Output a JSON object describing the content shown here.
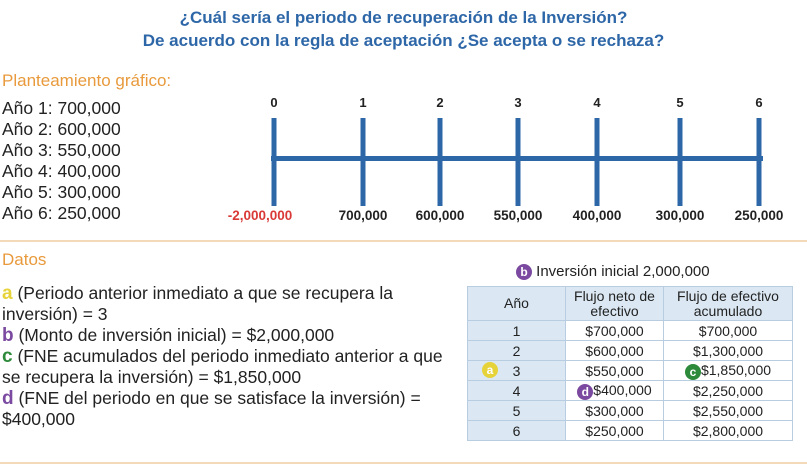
{
  "title": {
    "line1": "¿Cuál sería el periodo de recuperación de la Inversión?",
    "line2": "De acuerdo con la regla de aceptación ¿Se acepta o se rechaza?"
  },
  "graphic": {
    "heading": "Planteamiento gráfico:",
    "years": [
      "Año 1: 700,000",
      "Año 2: 600,000",
      "Año 3: 550,000",
      "Año 4: 400,000",
      "Año 5: 300,000",
      "Año 6: 250,000"
    ],
    "periods": [
      "0",
      "1",
      "2",
      "3",
      "4",
      "5",
      "6"
    ],
    "flows": [
      "-2,000,000",
      "700,000",
      "600,000",
      "550,000",
      "400,000",
      "300,000",
      "250,000"
    ],
    "colors": {
      "line": "#2e67a8",
      "negative": "#d93a37"
    }
  },
  "datos": {
    "heading": "Datos",
    "items": [
      {
        "key": "a",
        "text": "(Periodo anterior inmediato a que se recupera la inversión) = 3"
      },
      {
        "key": "b",
        "text": "(Monto de inversión inicial) = $2,000,000"
      },
      {
        "key": "c",
        "text": "(FNE acumulados del periodo inmediato anterior a que se recupera la inversión) = $1,850,000"
      },
      {
        "key": "d",
        "text": "(FNE del periodo en que se satisface la inversión) = $400,000"
      }
    ]
  },
  "table": {
    "marker": "b",
    "header_note": "Inversión inicial 2,000,000",
    "columns": [
      "Año",
      "Flujo neto de efectivo",
      "Flujo de efectivo acumulado"
    ],
    "rows": [
      {
        "year": "1",
        "flujo": "$700,000",
        "acum": "$700,000"
      },
      {
        "year": "2",
        "flujo": "$600,000",
        "acum": "$1,300,000"
      },
      {
        "year": "3",
        "flujo": "$550,000",
        "acum": "$1,850,000"
      },
      {
        "year": "4",
        "flujo": "$400,000",
        "acum": "$2,250,000"
      },
      {
        "year": "5",
        "flujo": "$300,000",
        "acum": "$2,550,000"
      },
      {
        "year": "6",
        "flujo": "$250,000",
        "acum": "$2,800,000"
      }
    ],
    "markers": {
      "a": "a",
      "c": "c",
      "d": "d"
    }
  }
}
